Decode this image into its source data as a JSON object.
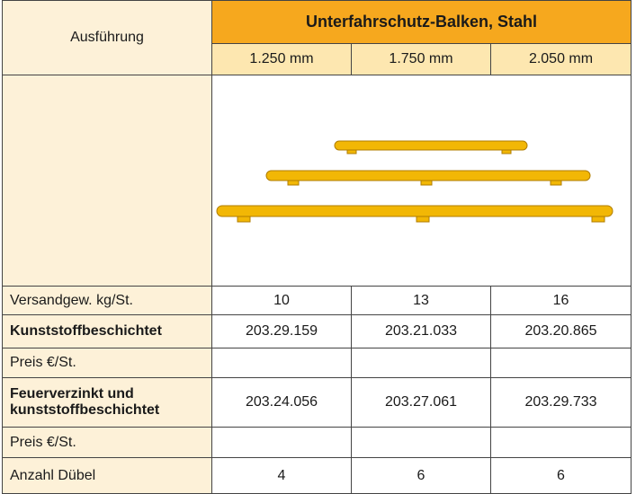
{
  "table": {
    "header": {
      "label": "Ausführung",
      "group": "Unterfahrschutz-Balken, Stahl",
      "columns": [
        "1.250 mm",
        "1.750 mm",
        "2.050 mm"
      ]
    },
    "rows": [
      {
        "label": "Versandgew. kg/St.",
        "values": [
          "10",
          "13",
          "16"
        ]
      },
      {
        "label": "Kunststoffbeschichtet",
        "values": [
          "203.29.159",
          "203.21.033",
          "203.20.865"
        ]
      },
      {
        "label": "Preis €/St."
      },
      {
        "label": "Feuerverzinkt und kunststoffbeschichtet",
        "values": [
          "203.24.056",
          "203.27.061",
          "203.29.733"
        ]
      },
      {
        "label": "Preis €/St."
      },
      {
        "label": "Anzahl Dübel",
        "values": [
          "4",
          "6",
          "6"
        ]
      }
    ]
  }
}
